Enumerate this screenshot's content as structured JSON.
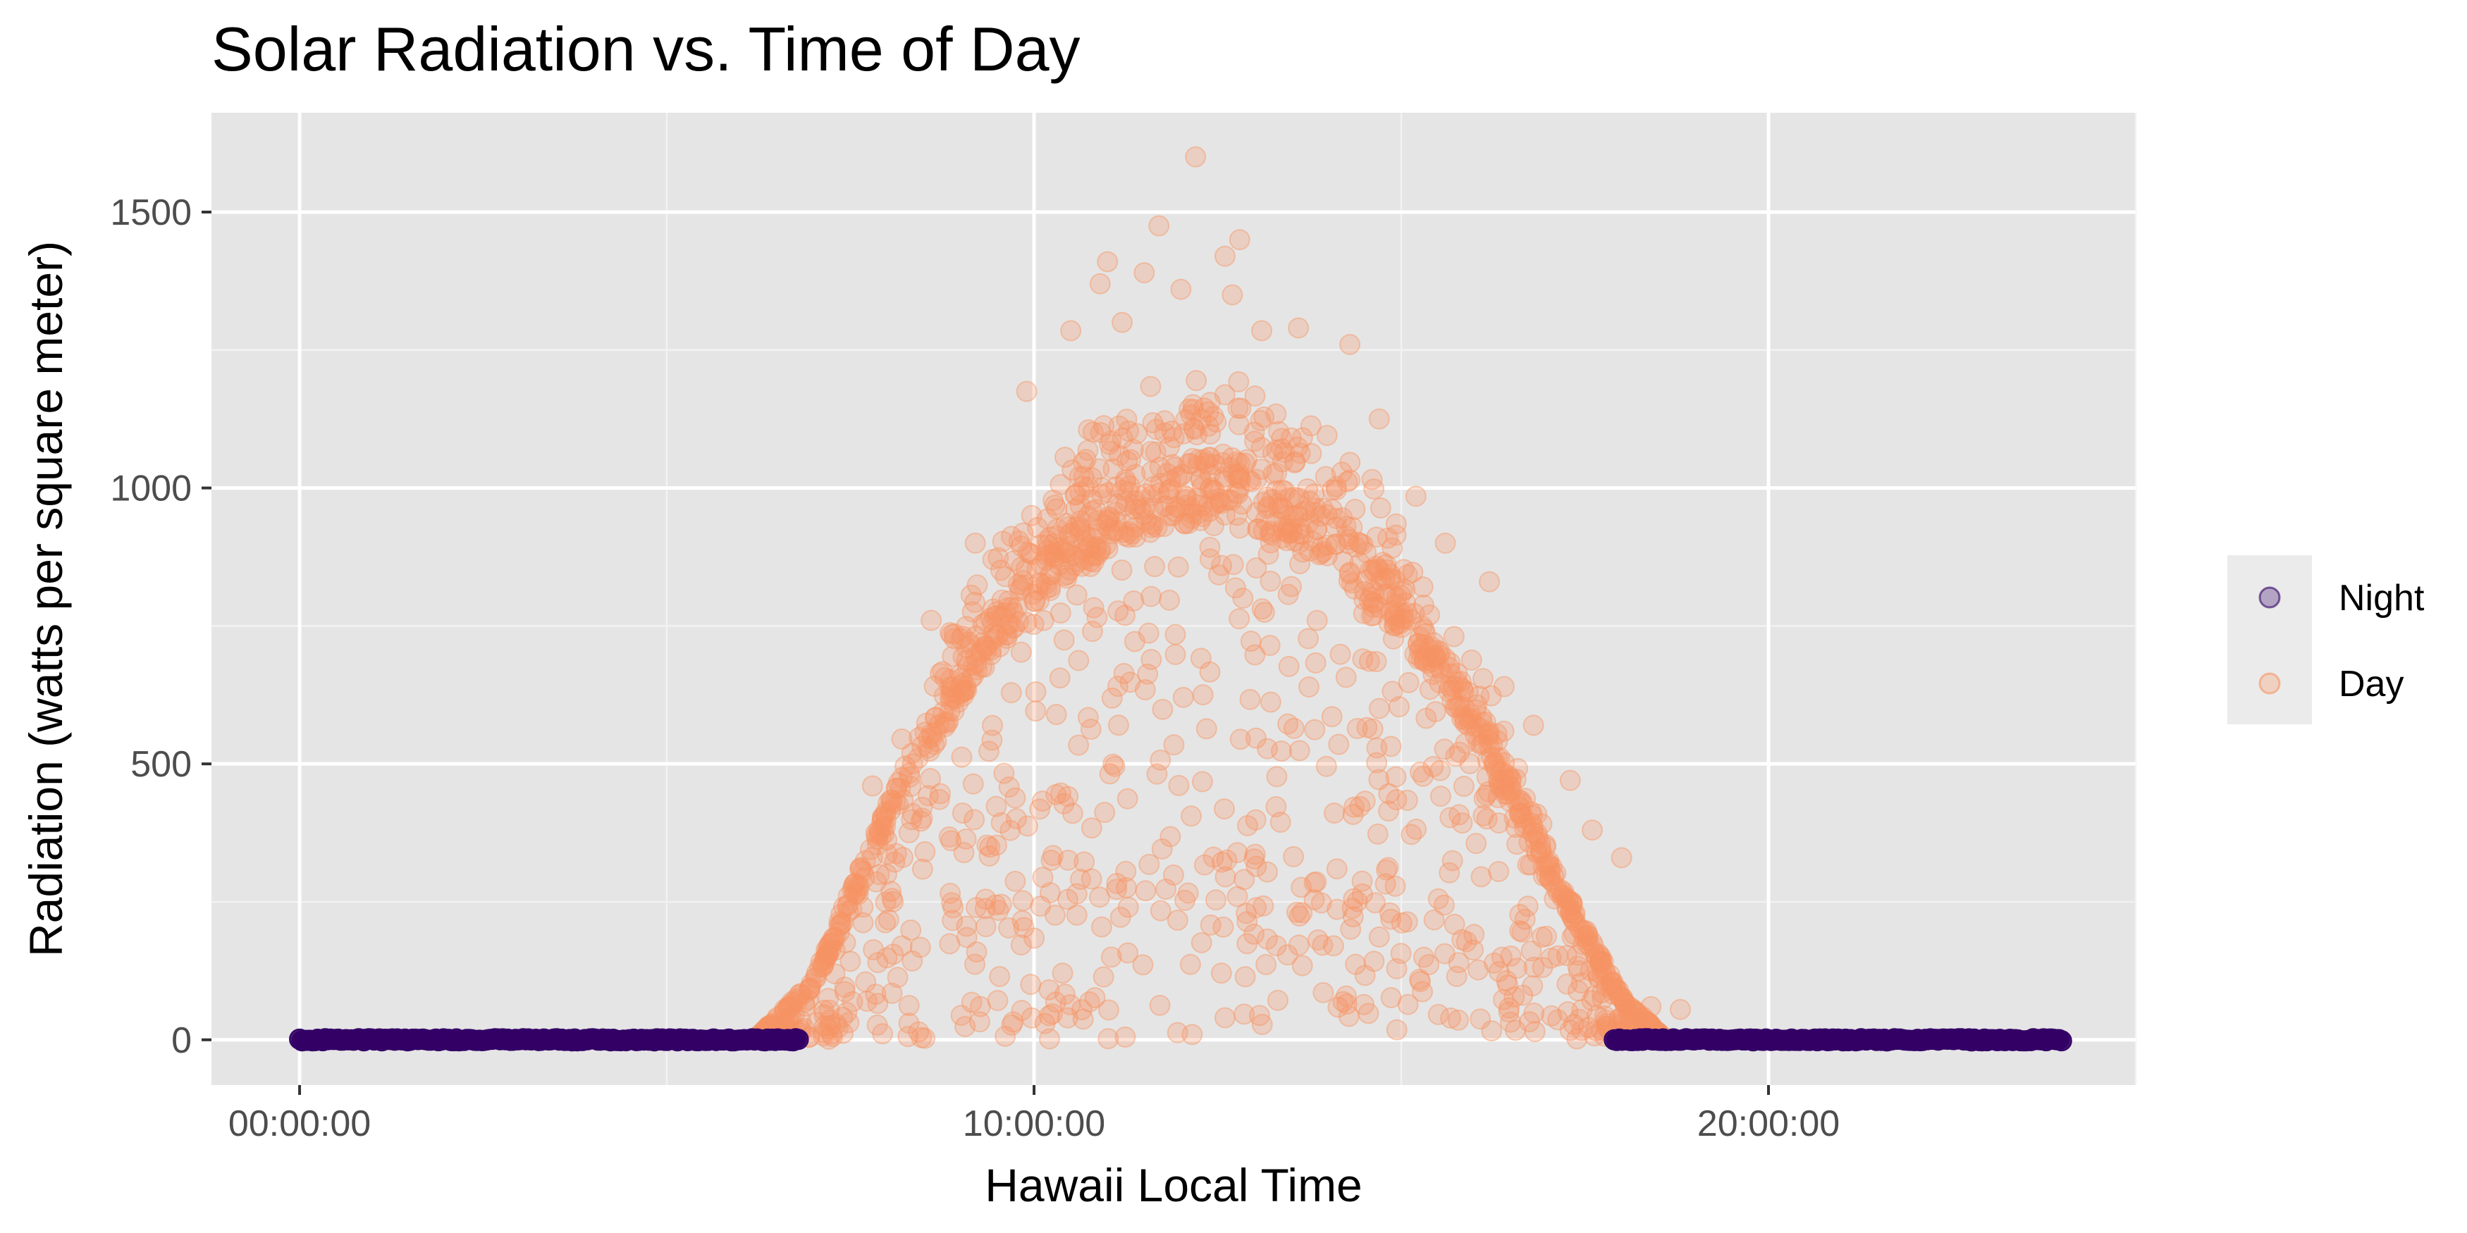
{
  "chart_data": {
    "type": "scatter",
    "title": "Solar Radiation vs. Time of Day",
    "xlabel": "Hawaii Local Time",
    "ylabel": "Radiation (watts per square meter)",
    "x_unit": "hours",
    "xlim": [
      -1.2,
      25.0
    ],
    "ylim": [
      -82,
      1680
    ],
    "x_ticks": [
      {
        "value": 0,
        "label": "00:00:00"
      },
      {
        "value": 10,
        "label": "10:00:00"
      },
      {
        "value": 20,
        "label": "20:00:00"
      }
    ],
    "y_ticks": [
      {
        "value": 0,
        "label": "0"
      },
      {
        "value": 500,
        "label": "500"
      },
      {
        "value": 1000,
        "label": "1000"
      },
      {
        "value": 1500,
        "label": "1500"
      }
    ],
    "grid": true,
    "legend_position": "right",
    "series": [
      {
        "name": "Night",
        "color": "#330066",
        "x_range": [
          [
            0,
            6.8
          ],
          [
            17.9,
            24
          ]
        ],
        "y_value": 0,
        "notes_time_format": "hh:mm:ss"
      },
      {
        "name": "Day",
        "color": "#f79463",
        "envelope": [
          {
            "x": 6.2,
            "y": 0
          },
          {
            "x": 7.0,
            "y": 110
          },
          {
            "x": 8.0,
            "y": 430
          },
          {
            "x": 9.0,
            "y": 700
          },
          {
            "x": 10.0,
            "y": 900
          },
          {
            "x": 11.0,
            "y": 1010
          },
          {
            "x": 12.0,
            "y": 1060
          },
          {
            "x": 12.5,
            "y": 1070
          },
          {
            "x": 13.0,
            "y": 1050
          },
          {
            "x": 14.0,
            "y": 980
          },
          {
            "x": 15.0,
            "y": 830
          },
          {
            "x": 16.0,
            "y": 620
          },
          {
            "x": 17.0,
            "y": 330
          },
          {
            "x": 18.0,
            "y": 80
          },
          {
            "x": 18.6,
            "y": 0
          }
        ],
        "outliers": [
          {
            "x": 12.2,
            "y": 1600
          },
          {
            "x": 11.7,
            "y": 1475
          },
          {
            "x": 12.8,
            "y": 1450
          },
          {
            "x": 12.6,
            "y": 1420
          },
          {
            "x": 11.0,
            "y": 1410
          },
          {
            "x": 10.9,
            "y": 1370
          },
          {
            "x": 11.5,
            "y": 1390
          },
          {
            "x": 12.0,
            "y": 1360
          },
          {
            "x": 12.7,
            "y": 1350
          },
          {
            "x": 11.2,
            "y": 1300
          },
          {
            "x": 13.6,
            "y": 1290
          },
          {
            "x": 14.3,
            "y": 1260
          },
          {
            "x": 10.5,
            "y": 1285
          },
          {
            "x": 13.1,
            "y": 1285
          },
          {
            "x": 9.9,
            "y": 1175
          },
          {
            "x": 14.7,
            "y": 1125
          },
          {
            "x": 15.2,
            "y": 985
          },
          {
            "x": 15.6,
            "y": 900
          },
          {
            "x": 16.2,
            "y": 830
          },
          {
            "x": 16.4,
            "y": 640
          },
          {
            "x": 16.8,
            "y": 570
          },
          {
            "x": 17.3,
            "y": 470
          },
          {
            "x": 18.0,
            "y": 330
          },
          {
            "x": 17.6,
            "y": 380
          },
          {
            "x": 8.2,
            "y": 545
          },
          {
            "x": 7.8,
            "y": 460
          },
          {
            "x": 8.6,
            "y": 760
          },
          {
            "x": 9.2,
            "y": 900
          },
          {
            "x": 12.6,
            "y": 40
          },
          {
            "x": 18.4,
            "y": 60
          },
          {
            "x": 18.8,
            "y": 55
          }
        ]
      }
    ]
  }
}
